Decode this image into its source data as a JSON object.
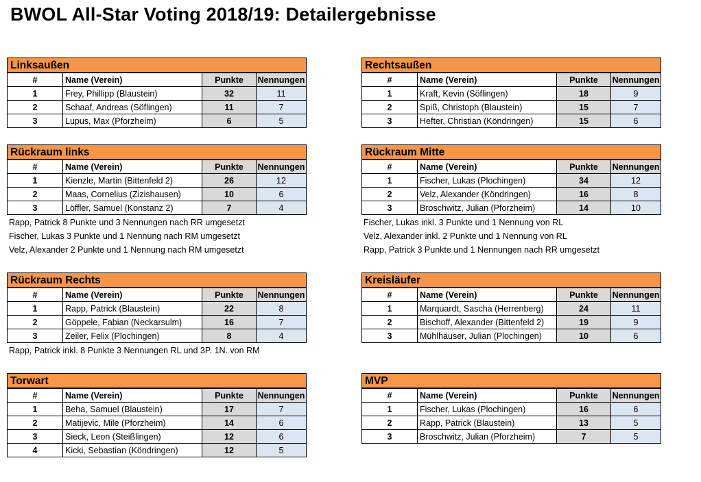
{
  "title": "BWOL All-Star Voting 2018/19: Detailergebnisse",
  "headers": {
    "num": "#",
    "name": "Name (Verein)",
    "points": "Punkte",
    "nominations": "Nennungen"
  },
  "colors": {
    "section_header": "#f79646",
    "points_fill": "#d9d9d9",
    "nominations_fill": "#dce6f1"
  },
  "sections": [
    {
      "title": "Linksaußen",
      "rows": [
        {
          "rank": "1",
          "name": "Frey, Phillipp (Blaustein)",
          "points": "32",
          "nominations": "11"
        },
        {
          "rank": "2",
          "name": "Schaaf, Andreas (Söflingen)",
          "points": "11",
          "nominations": "7"
        },
        {
          "rank": "3",
          "name": "Lupus, Max (Pforzheim)",
          "points": "6",
          "nominations": "5"
        }
      ],
      "notes": []
    },
    {
      "title": "Rechtsaußen",
      "rows": [
        {
          "rank": "1",
          "name": "Kraft, Kevin (Söflingen)",
          "points": "18",
          "nominations": "9"
        },
        {
          "rank": "2",
          "name": "Spiß, Christoph (Blaustein)",
          "points": "15",
          "nominations": "7"
        },
        {
          "rank": "3",
          "name": "Hefter, Christian (Köndringen)",
          "points": "15",
          "nominations": "6"
        }
      ],
      "notes": []
    },
    {
      "title": "Rückraum links",
      "rows": [
        {
          "rank": "1",
          "name": "Kienzle, Martin (Bittenfeld 2)",
          "points": "26",
          "nominations": "12"
        },
        {
          "rank": "2",
          "name": "Maas, Cornelius (Zizishausen)",
          "points": "10",
          "nominations": "6"
        },
        {
          "rank": "3",
          "name": "Löffler, Samuel (Konstanz 2)",
          "points": "7",
          "nominations": "4"
        }
      ],
      "notes": [
        "Rapp, Patrick 8 Punkte und 3 Nennungen nach RR umgesetzt",
        "Fischer, Lukas 3 Punkte und 1 Nennung nach RM umgesetzt",
        "Velz, Alexander 2 Punkte und 1 Nennung nach RM umgesetzt"
      ]
    },
    {
      "title": "Rückraum Mitte",
      "rows": [
        {
          "rank": "1",
          "name": "Fischer, Lukas (Plochingen)",
          "points": "34",
          "nominations": "12"
        },
        {
          "rank": "2",
          "name": "Velz, Alexander (Köndringen)",
          "points": "16",
          "nominations": "8"
        },
        {
          "rank": "3",
          "name": "Broschwitz, Julian (Pforzheim)",
          "points": "14",
          "nominations": "10"
        }
      ],
      "notes": [
        "Fischer, Lukas inkl. 3 Punkte und 1 Nennung von RL",
        "Velz, Alexander inkl. 2 Punkte und 1 Nennung von RL",
        "Rapp, Patrick 3 Punkte und 1 Nennungen nach RR umgesetzt"
      ]
    },
    {
      "title": "Rückraum Rechts",
      "rows": [
        {
          "rank": "1",
          "name": "Rapp, Patrick (Blaustein)",
          "points": "22",
          "nominations": "8"
        },
        {
          "rank": "2",
          "name": "Göppele, Fabian (Neckarsulm)",
          "points": "16",
          "nominations": "7"
        },
        {
          "rank": "3",
          "name": "Zeiler, Felix (Plochingen)",
          "points": "8",
          "nominations": "4"
        }
      ],
      "notes": [
        "Rapp, Patrick inkl. 8 Punkte 3 Nennungen RL und 3P. 1N. von RM"
      ]
    },
    {
      "title": "Kreisläufer",
      "rows": [
        {
          "rank": "1",
          "name": "Marquardt, Sascha (Herrenberg)",
          "points": "24",
          "nominations": "11"
        },
        {
          "rank": "2",
          "name": "Bischoff, Alexander (Bittenfeld 2)",
          "points": "19",
          "nominations": "9"
        },
        {
          "rank": "3",
          "name": "Mühlhäuser, Julian (Plochingen)",
          "points": "10",
          "nominations": "6"
        }
      ],
      "notes": []
    },
    {
      "title": "Torwart",
      "rows": [
        {
          "rank": "1",
          "name": "Beha, Samuel (Blaustein)",
          "points": "17",
          "nominations": "7"
        },
        {
          "rank": "2",
          "name": "Matijevic, Mile (Pforzheim)",
          "points": "14",
          "nominations": "6"
        },
        {
          "rank": "3",
          "name": "Sieck, Leon (Steißlingen)",
          "points": "12",
          "nominations": "6"
        },
        {
          "rank": "4",
          "name": "Kicki, Sebastian (Köndringen)",
          "points": "12",
          "nominations": "5"
        }
      ],
      "notes": []
    },
    {
      "title": "MVP",
      "rows": [
        {
          "rank": "1",
          "name": "Fischer, Lukas (Plochingen)",
          "points": "16",
          "nominations": "6"
        },
        {
          "rank": "2",
          "name": "Rapp, Patrick (Blaustein)",
          "points": "13",
          "nominations": "5"
        },
        {
          "rank": "3",
          "name": "Broschwitz, Julian (Pforzheim)",
          "points": "7",
          "nominations": "5"
        }
      ],
      "notes": []
    }
  ]
}
